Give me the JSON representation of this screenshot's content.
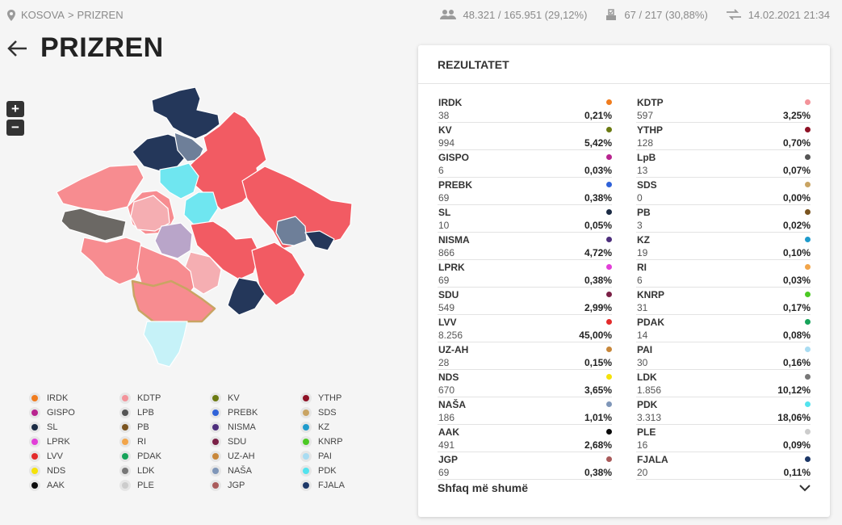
{
  "breadcrumb": {
    "root": "KOSOVA",
    "separator": ">",
    "current": "PRIZREN"
  },
  "stats": {
    "voters": "48.321 / 165.951 (29,12%)",
    "stations": "67 / 217 (30,88%)",
    "updated": "14.02.2021 21:34"
  },
  "page_title": "PRIZREN",
  "zoom": {
    "in": "+",
    "out": "−"
  },
  "panel": {
    "title": "REZULTATET",
    "show_more": "Shfaq më shumë",
    "results_left": [
      {
        "name": "IRDK",
        "votes": "38",
        "pct": "0,21%",
        "color": "#f07c1e"
      },
      {
        "name": "KV",
        "votes": "994",
        "pct": "5,42%",
        "color": "#6b7a12"
      },
      {
        "name": "GISPO",
        "votes": "6",
        "pct": "0,03%",
        "color": "#b8248f"
      },
      {
        "name": "PREBK",
        "votes": "69",
        "pct": "0,38%",
        "color": "#2f62d8"
      },
      {
        "name": "SL",
        "votes": "10",
        "pct": "0,05%",
        "color": "#1b2b44"
      },
      {
        "name": "NISMA",
        "votes": "866",
        "pct": "4,72%",
        "color": "#4d2e7c"
      },
      {
        "name": "LPRK",
        "votes": "69",
        "pct": "0,38%",
        "color": "#e23fd8"
      },
      {
        "name": "SDU",
        "votes": "549",
        "pct": "2,99%",
        "color": "#7a2046"
      },
      {
        "name": "LVV",
        "votes": "8.256",
        "pct": "45,00%",
        "color": "#e32b2b"
      },
      {
        "name": "UZ-AH",
        "votes": "28",
        "pct": "0,15%",
        "color": "#c8873a"
      },
      {
        "name": "NDS",
        "votes": "670",
        "pct": "3,65%",
        "color": "#f5e20a"
      },
      {
        "name": "NAŠA",
        "votes": "186",
        "pct": "1,01%",
        "color": "#7f96b8"
      },
      {
        "name": "AAK",
        "votes": "491",
        "pct": "2,68%",
        "color": "#0a0a0a"
      },
      {
        "name": "JGP",
        "votes": "69",
        "pct": "0,38%",
        "color": "#a95a5a"
      }
    ],
    "results_right": [
      {
        "name": "KDTP",
        "votes": "597",
        "pct": "3,25%",
        "color": "#f3939a"
      },
      {
        "name": "YTHP",
        "votes": "128",
        "pct": "0,70%",
        "color": "#8e1226"
      },
      {
        "name": "LpB",
        "votes": "13",
        "pct": "0,07%",
        "color": "#555555"
      },
      {
        "name": "SDS",
        "votes": "0",
        "pct": "0,00%",
        "color": "#c9a463"
      },
      {
        "name": "PB",
        "votes": "3",
        "pct": "0,02%",
        "color": "#7a5420"
      },
      {
        "name": "KZ",
        "votes": "19",
        "pct": "0,10%",
        "color": "#1f9bcc"
      },
      {
        "name": "RI",
        "votes": "6",
        "pct": "0,03%",
        "color": "#f2a54a"
      },
      {
        "name": "KNRP",
        "votes": "31",
        "pct": "0,17%",
        "color": "#4cc924"
      },
      {
        "name": "PDAK",
        "votes": "14",
        "pct": "0,08%",
        "color": "#17a35a"
      },
      {
        "name": "PAI",
        "votes": "30",
        "pct": "0,16%",
        "color": "#a9dcf2"
      },
      {
        "name": "LDK",
        "votes": "1.856",
        "pct": "10,12%",
        "color": "#777777"
      },
      {
        "name": "PDK",
        "votes": "3.313",
        "pct": "18,06%",
        "color": "#53e3ee"
      },
      {
        "name": "PLE",
        "votes": "16",
        "pct": "0,09%",
        "color": "#cccccc"
      },
      {
        "name": "FJALA",
        "votes": "20",
        "pct": "0,11%",
        "color": "#1c3767"
      }
    ]
  },
  "legend": [
    {
      "name": "IRDK",
      "color": "#f07c1e"
    },
    {
      "name": "KDTP",
      "color": "#f3939a"
    },
    {
      "name": "KV",
      "color": "#6b7a12"
    },
    {
      "name": "YTHP",
      "color": "#8e1226"
    },
    {
      "name": "GISPO",
      "color": "#b8248f"
    },
    {
      "name": "LPB",
      "color": "#555555"
    },
    {
      "name": "PREBK",
      "color": "#2f62d8"
    },
    {
      "name": "SDS",
      "color": "#c9a463"
    },
    {
      "name": "SL",
      "color": "#1b2b44"
    },
    {
      "name": "PB",
      "color": "#7a5420"
    },
    {
      "name": "NISMA",
      "color": "#4d2e7c"
    },
    {
      "name": "KZ",
      "color": "#1f9bcc"
    },
    {
      "name": "LPRK",
      "color": "#e23fd8"
    },
    {
      "name": "RI",
      "color": "#f2a54a"
    },
    {
      "name": "SDU",
      "color": "#7a2046"
    },
    {
      "name": "KNRP",
      "color": "#4cc924"
    },
    {
      "name": "LVV",
      "color": "#e32b2b"
    },
    {
      "name": "PDAK",
      "color": "#17a35a"
    },
    {
      "name": "UZ-AH",
      "color": "#c8873a"
    },
    {
      "name": "PAI",
      "color": "#a9dcf2"
    },
    {
      "name": "NDS",
      "color": "#f5e20a"
    },
    {
      "name": "LDK",
      "color": "#777777"
    },
    {
      "name": "NAŠA",
      "color": "#7f96b8"
    },
    {
      "name": "PDK",
      "color": "#53e3ee"
    },
    {
      "name": "AAK",
      "color": "#0a0a0a"
    },
    {
      "name": "PLE",
      "color": "#cccccc"
    },
    {
      "name": "JGP",
      "color": "#a95a5a"
    },
    {
      "name": "FJALA",
      "color": "#1c3767"
    }
  ],
  "map_colors": {
    "lvv": "#f25b63",
    "lvv_light": "#f78c90",
    "kdtp": "#f5aeb2",
    "ldk": "#6b6864",
    "pdk": "#6fe6f0",
    "pdk_light": "#c6f2f8",
    "fjala": "#24375a",
    "nasa": "#6e7f99",
    "nisma": "#b9a5c9",
    "selected_outline": "#c9a463"
  }
}
